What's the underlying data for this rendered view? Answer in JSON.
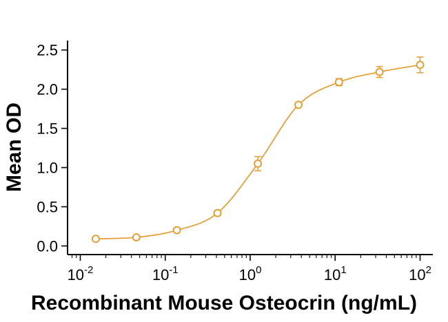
{
  "chart_data": {
    "type": "line",
    "subtype": "dose-response-curve",
    "title": "",
    "xlabel": "Recombinant Mouse Osteocrin (ng/mL)",
    "ylabel": "Mean OD",
    "x_scale": "log10",
    "x": [
      0.0152,
      0.0457,
      0.137,
      0.412,
      1.23,
      3.7,
      11.1,
      33.3,
      100
    ],
    "y": [
      0.09,
      0.11,
      0.2,
      0.42,
      1.05,
      1.8,
      2.09,
      2.22,
      2.31
    ],
    "y_err": [
      0.015,
      0.015,
      0.02,
      0.03,
      0.09,
      0.025,
      0.045,
      0.07,
      0.1
    ],
    "x_ticks": [
      {
        "value": 0.01,
        "mantissa": "10",
        "exponent": "-2"
      },
      {
        "value": 0.1,
        "mantissa": "10",
        "exponent": "-1"
      },
      {
        "value": 1,
        "mantissa": "10",
        "exponent": "0"
      },
      {
        "value": 10,
        "mantissa": "10",
        "exponent": "1"
      },
      {
        "value": 100,
        "mantissa": "10",
        "exponent": "2"
      }
    ],
    "y_ticks": [
      {
        "value": 0.0,
        "label": "0.0"
      },
      {
        "value": 0.5,
        "label": "0.5"
      },
      {
        "value": 1.0,
        "label": "1.0"
      },
      {
        "value": 1.5,
        "label": "1.5"
      },
      {
        "value": 2.0,
        "label": "2.0"
      },
      {
        "value": 2.5,
        "label": "2.5"
      }
    ],
    "xlim_log10": [
      -2.15,
      2.15
    ],
    "ylim": [
      -0.11,
      2.62
    ],
    "grid": false,
    "legend": null,
    "series_color": "#E49C2F",
    "marker": "open-circle",
    "error_bars": "vertical-with-caps",
    "axis_color": "#000000",
    "text_color": "#000000"
  }
}
